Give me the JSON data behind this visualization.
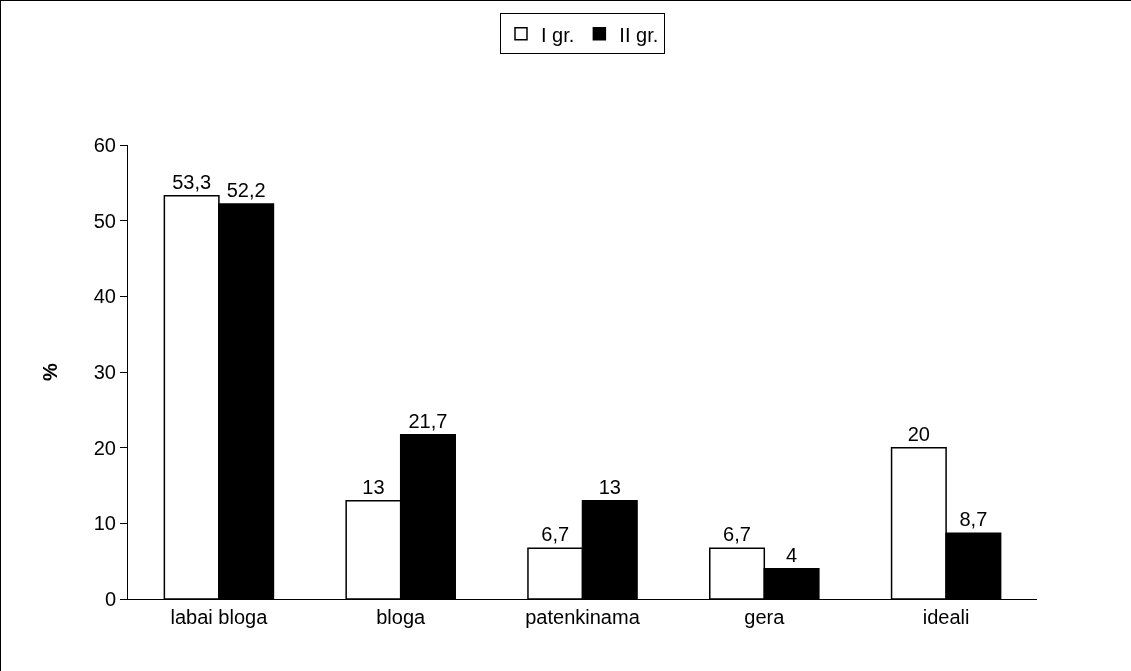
{
  "chart_data": {
    "type": "bar",
    "ylabel": "%",
    "categories": [
      "labai bloga",
      "bloga",
      "patenkinama",
      "gera",
      "ideali"
    ],
    "series": [
      {
        "name": "I gr.",
        "color": "#ffffff",
        "values": [
          53.3,
          13,
          6.7,
          6.7,
          20
        ],
        "value_labels": [
          "53,3",
          "13",
          "6,7",
          "6,7",
          "20"
        ]
      },
      {
        "name": "II gr.",
        "color": "#000000",
        "values": [
          52.2,
          21.7,
          13,
          4,
          8.7
        ],
        "value_labels": [
          "52,2",
          "21,7",
          "13",
          "4",
          "8,7"
        ]
      }
    ],
    "ylim": [
      0,
      60
    ],
    "yticks": [
      0,
      10,
      20,
      30,
      40,
      50,
      60
    ],
    "grid": false,
    "legend": "top"
  }
}
